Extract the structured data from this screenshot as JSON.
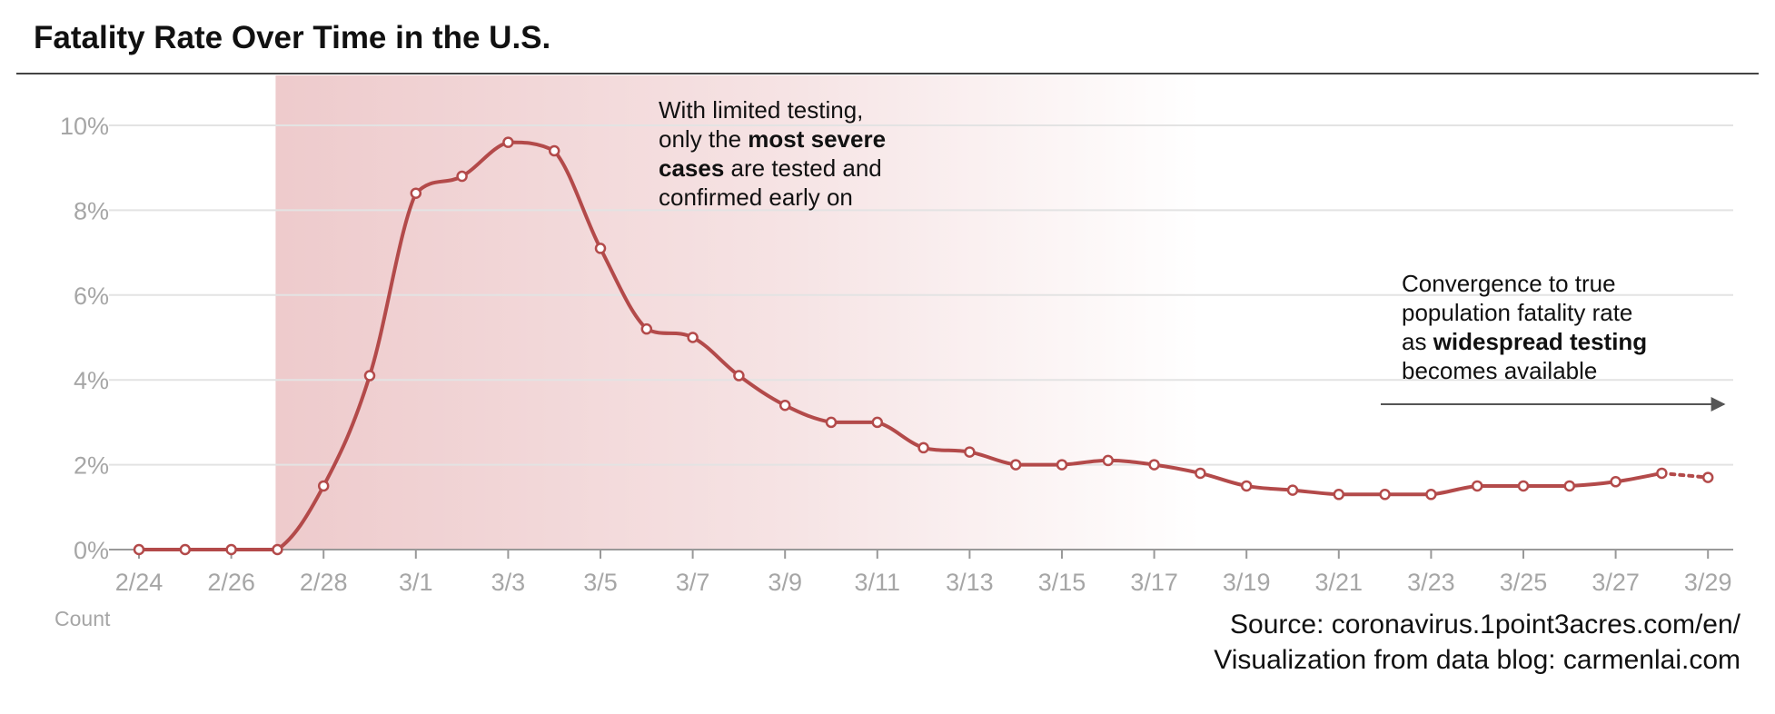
{
  "title": "Fatality Rate Over Time in the U.S.",
  "annotations": {
    "early": {
      "line1": "With limited testing,",
      "line2_pre": "only the ",
      "line2_bold": "most severe",
      "line3_bold": "cases",
      "line3_post": " are tested and",
      "line4": "confirmed early on"
    },
    "late": {
      "line1": "Convergence to true",
      "line2": "population fatality rate",
      "line3_pre": "as ",
      "line3_bold": "widespread testing",
      "line4": "becomes available"
    }
  },
  "count_label": "Count",
  "source": {
    "line1": "Source: coronavirus.1point3acres.com/en/",
    "line2": "Visualization from data blog: carmenlai.com"
  },
  "colors": {
    "line": "#b34a4a",
    "shade": "#e8b9bb",
    "marker_fill": "#ffffff",
    "arrow": "#555555"
  },
  "chart_data": {
    "type": "line",
    "title": "Fatality Rate Over Time in the U.S.",
    "xlabel": "",
    "ylabel": "",
    "ylim": [
      0,
      10
    ],
    "y_ticks": [
      "0%",
      "2%",
      "4%",
      "6%",
      "8%",
      "10%"
    ],
    "x_tick_labels": [
      "2/24",
      "2/26",
      "2/28",
      "3/1",
      "3/3",
      "3/5",
      "3/7",
      "3/9",
      "3/11",
      "3/13",
      "3/15",
      "3/17",
      "3/19",
      "3/21",
      "3/23",
      "3/25",
      "3/27",
      "3/29"
    ],
    "x": [
      "2/24",
      "2/25",
      "2/26",
      "2/27",
      "2/28",
      "2/29",
      "3/1",
      "3/2",
      "3/3",
      "3/4",
      "3/5",
      "3/6",
      "3/7",
      "3/8",
      "3/9",
      "3/10",
      "3/11",
      "3/12",
      "3/13",
      "3/14",
      "3/15",
      "3/16",
      "3/17",
      "3/18",
      "3/19",
      "3/20",
      "3/21",
      "3/22",
      "3/23",
      "3/24",
      "3/25",
      "3/26",
      "3/27",
      "3/28",
      "3/29"
    ],
    "values": [
      0.0,
      0.0,
      0.0,
      0.0,
      1.5,
      4.1,
      8.4,
      8.8,
      9.6,
      9.4,
      7.1,
      5.2,
      5.0,
      4.1,
      3.4,
      3.0,
      3.0,
      2.4,
      2.3,
      2.0,
      2.0,
      2.1,
      2.0,
      1.8,
      1.5,
      1.4,
      1.3,
      1.3,
      1.3,
      1.5,
      1.5,
      1.5,
      1.6,
      1.8,
      1.7
    ],
    "last_segment_dotted": true,
    "shaded_region": [
      "2/27",
      "3/18"
    ],
    "grid": true,
    "legend": "none"
  }
}
